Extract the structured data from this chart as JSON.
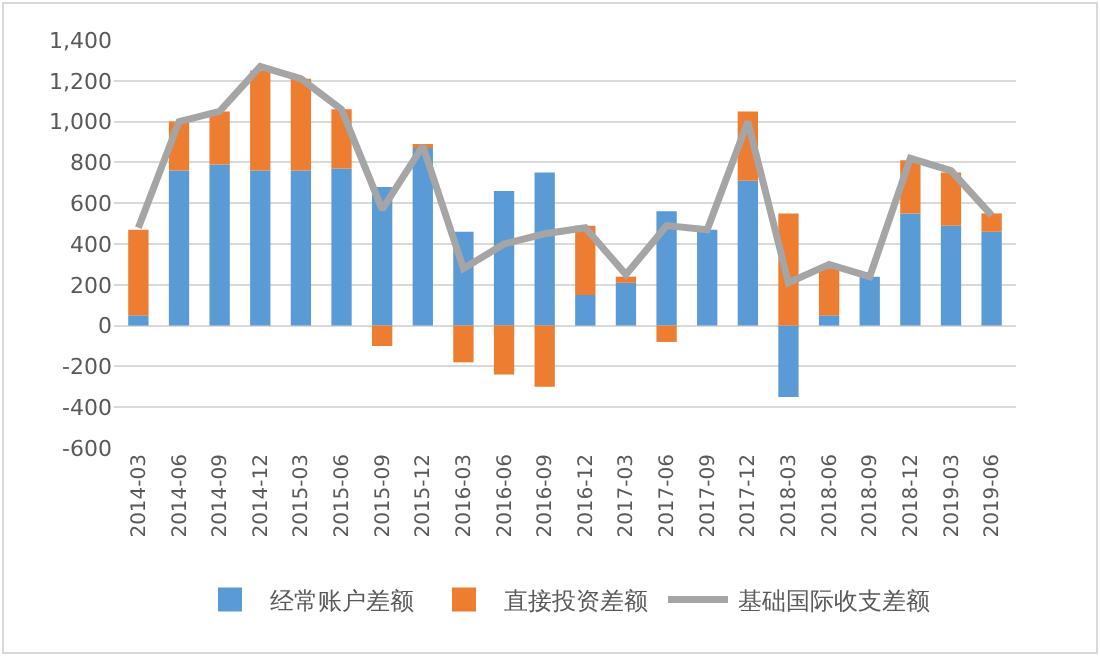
{
  "chart_data": {
    "type": "bar",
    "stacked": true,
    "categories": [
      "2014-03",
      "2014-06",
      "2014-09",
      "2014-12",
      "2015-03",
      "2015-06",
      "2015-09",
      "2015-12",
      "2016-03",
      "2016-06",
      "2016-09",
      "2016-12",
      "2017-03",
      "2017-06",
      "2017-09",
      "2017-12",
      "2018-03",
      "2018-06",
      "2018-09",
      "2018-12",
      "2019-03",
      "2019-06"
    ],
    "series": [
      {
        "name": "经常账户差额",
        "color": "#5b9bd5",
        "values": [
          50,
          760,
          790,
          760,
          760,
          770,
          680,
          870,
          460,
          660,
          750,
          150,
          210,
          560,
          470,
          710,
          -350,
          50,
          240,
          550,
          490,
          460
        ]
      },
      {
        "name": "直接投资差额",
        "color": "#ed7d31",
        "values": [
          420,
          240,
          260,
          490,
          450,
          290,
          -100,
          20,
          -180,
          -240,
          -300,
          340,
          30,
          -80,
          null,
          340,
          550,
          240,
          null,
          260,
          260,
          90
        ]
      },
      {
        "name": "基础国际收支差额",
        "type": "line",
        "color": "#a5a5a5",
        "values": [
          480,
          1000,
          1050,
          1270,
          1210,
          1060,
          570,
          880,
          280,
          400,
          450,
          480,
          250,
          490,
          470,
          1000,
          210,
          300,
          240,
          820,
          760,
          540
        ]
      }
    ],
    "ylim": [
      -600,
      1400
    ],
    "yticks": [
      {
        "value": -600,
        "label": "-600"
      },
      {
        "value": -400,
        "label": "-400"
      },
      {
        "value": -200,
        "label": "-200"
      },
      {
        "value": 0,
        "label": "0"
      },
      {
        "value": 200,
        "label": "200"
      },
      {
        "value": 400,
        "label": "400"
      },
      {
        "value": 600,
        "label": "600"
      },
      {
        "value": 800,
        "label": "800"
      },
      {
        "value": 1000,
        "label": "1,000"
      },
      {
        "value": 1200,
        "label": "1,200"
      },
      {
        "value": 1400,
        "label": "1,400"
      }
    ],
    "grid": "y",
    "legend": "bottom",
    "marker": "none",
    "line_style": "solid"
  }
}
